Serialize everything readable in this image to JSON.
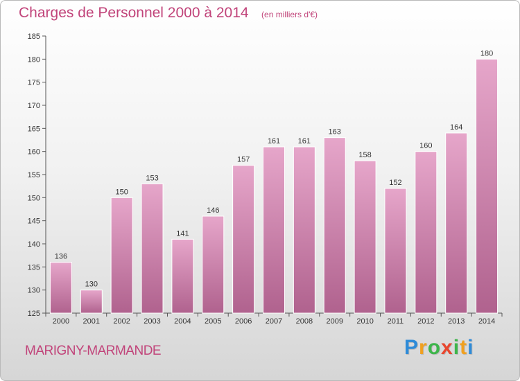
{
  "header": {
    "title": "Charges de Personnel 2000 à 2014",
    "unit": "(en milliers d'€)"
  },
  "footer": {
    "commune": "MARIGNY-MARMANDE",
    "logo_text": "Proxiti"
  },
  "colors": {
    "accent": "#c1447a",
    "bar_top": "#e6a6ca",
    "bar_bottom": "#b0628e"
  },
  "chart_data": {
    "type": "bar",
    "title": "Charges de Personnel 2000 à 2014",
    "subtitle": "(en milliers d'€)",
    "xlabel": "",
    "ylabel": "",
    "categories": [
      "2000",
      "2001",
      "2002",
      "2003",
      "2004",
      "2005",
      "2006",
      "2007",
      "2008",
      "2009",
      "2010",
      "2011",
      "2012",
      "2013",
      "2014"
    ],
    "values": [
      136,
      130,
      150,
      153,
      141,
      146,
      157,
      161,
      161,
      163,
      158,
      152,
      160,
      164,
      180
    ],
    "ylim": [
      125,
      185
    ],
    "yticks": [
      125,
      130,
      135,
      140,
      145,
      150,
      155,
      160,
      165,
      170,
      175,
      180,
      185
    ],
    "grid": false,
    "legend": "none"
  }
}
